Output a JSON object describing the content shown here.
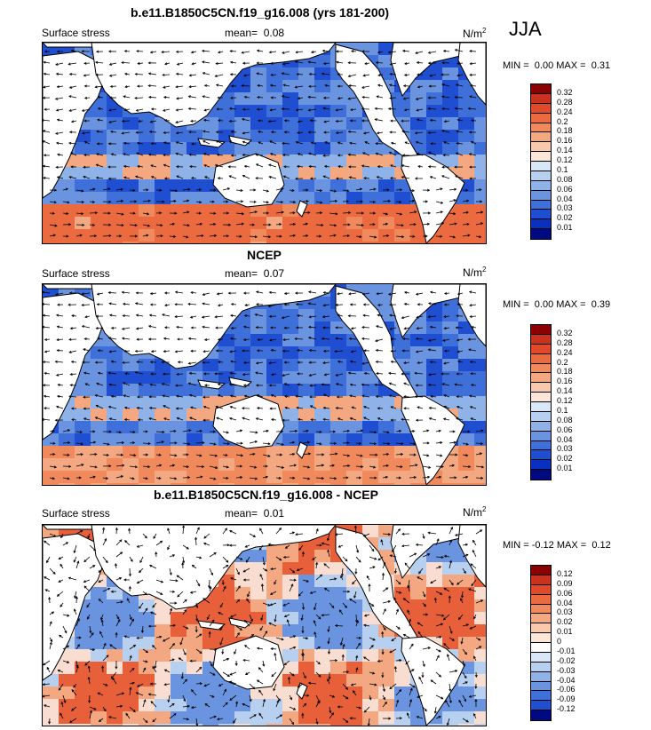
{
  "season": "JJA",
  "panels": [
    {
      "title": "b.e11.B1850C5CN.f19_g16.008 (yrs 181-200)",
      "variable": "Surface stress",
      "mean_label": "mean=",
      "mean_value": "0.08",
      "units_base": "N/m",
      "units_exp": "2",
      "min_label": "MIN =",
      "min_value": "0.00",
      "max_label": "MAX =",
      "max_value": "0.31",
      "colorbar_labels": [
        "0.32",
        "0.28",
        "0.24",
        "0.2",
        "0.18",
        "0.16",
        "0.14",
        "0.12",
        "0.1",
        "0.08",
        "0.06",
        "0.04",
        "0.03",
        "0.02",
        "0.01"
      ],
      "colorbar_colors": [
        "#8b0000",
        "#c8321e",
        "#e04a2a",
        "#ec6a40",
        "#f08a5c",
        "#f4a882",
        "#f8c9ad",
        "#fbe6d8",
        "#d8e8f8",
        "#b8d0f0",
        "#8fb2e8",
        "#6a94e0",
        "#3f6fd8",
        "#1f4ed0",
        "#0a30c0",
        "#000a80"
      ]
    },
    {
      "title": "NCEP",
      "variable": "Surface stress",
      "mean_label": "mean=",
      "mean_value": "0.07",
      "units_base": "N/m",
      "units_exp": "2",
      "min_label": "MIN =",
      "min_value": "0.00",
      "max_label": "MAX =",
      "max_value": "0.39",
      "colorbar_labels": [
        "0.32",
        "0.28",
        "0.24",
        "0.2",
        "0.18",
        "0.16",
        "0.14",
        "0.12",
        "0.1",
        "0.08",
        "0.06",
        "0.04",
        "0.03",
        "0.02",
        "0.01"
      ],
      "colorbar_colors": [
        "#8b0000",
        "#c8321e",
        "#e04a2a",
        "#ec6a40",
        "#f08a5c",
        "#f4a882",
        "#f8c9ad",
        "#fbe6d8",
        "#d8e8f8",
        "#b8d0f0",
        "#8fb2e8",
        "#6a94e0",
        "#3f6fd8",
        "#1f4ed0",
        "#0a30c0",
        "#000a80"
      ]
    },
    {
      "title": "b.e11.B1850C5CN.f19_g16.008 - NCEP",
      "variable": "Surface stress",
      "mean_label": "mean=",
      "mean_value": "0.01",
      "units_base": "N/m",
      "units_exp": "2",
      "min_label": "MIN =",
      "min_value": "-0.12",
      "max_label": "MAX =",
      "max_value": "0.12",
      "colorbar_labels": [
        "0.12",
        "0.09",
        "0.06",
        "0.04",
        "0.03",
        "0.02",
        "0.01",
        "0",
        "-0.01",
        "-0.02",
        "-0.03",
        "-0.04",
        "-0.06",
        "-0.09",
        "-0.12"
      ],
      "colorbar_colors": [
        "#8b0000",
        "#c8321e",
        "#e04a2a",
        "#ec6a40",
        "#f08a5c",
        "#f4a882",
        "#f8c9ad",
        "#fbe6d8",
        "#ffffff",
        "#d8e8f8",
        "#b8d0f0",
        "#8fb2e8",
        "#6a94e0",
        "#3f6fd8",
        "#1f4ed0",
        "#000a80"
      ]
    }
  ]
}
